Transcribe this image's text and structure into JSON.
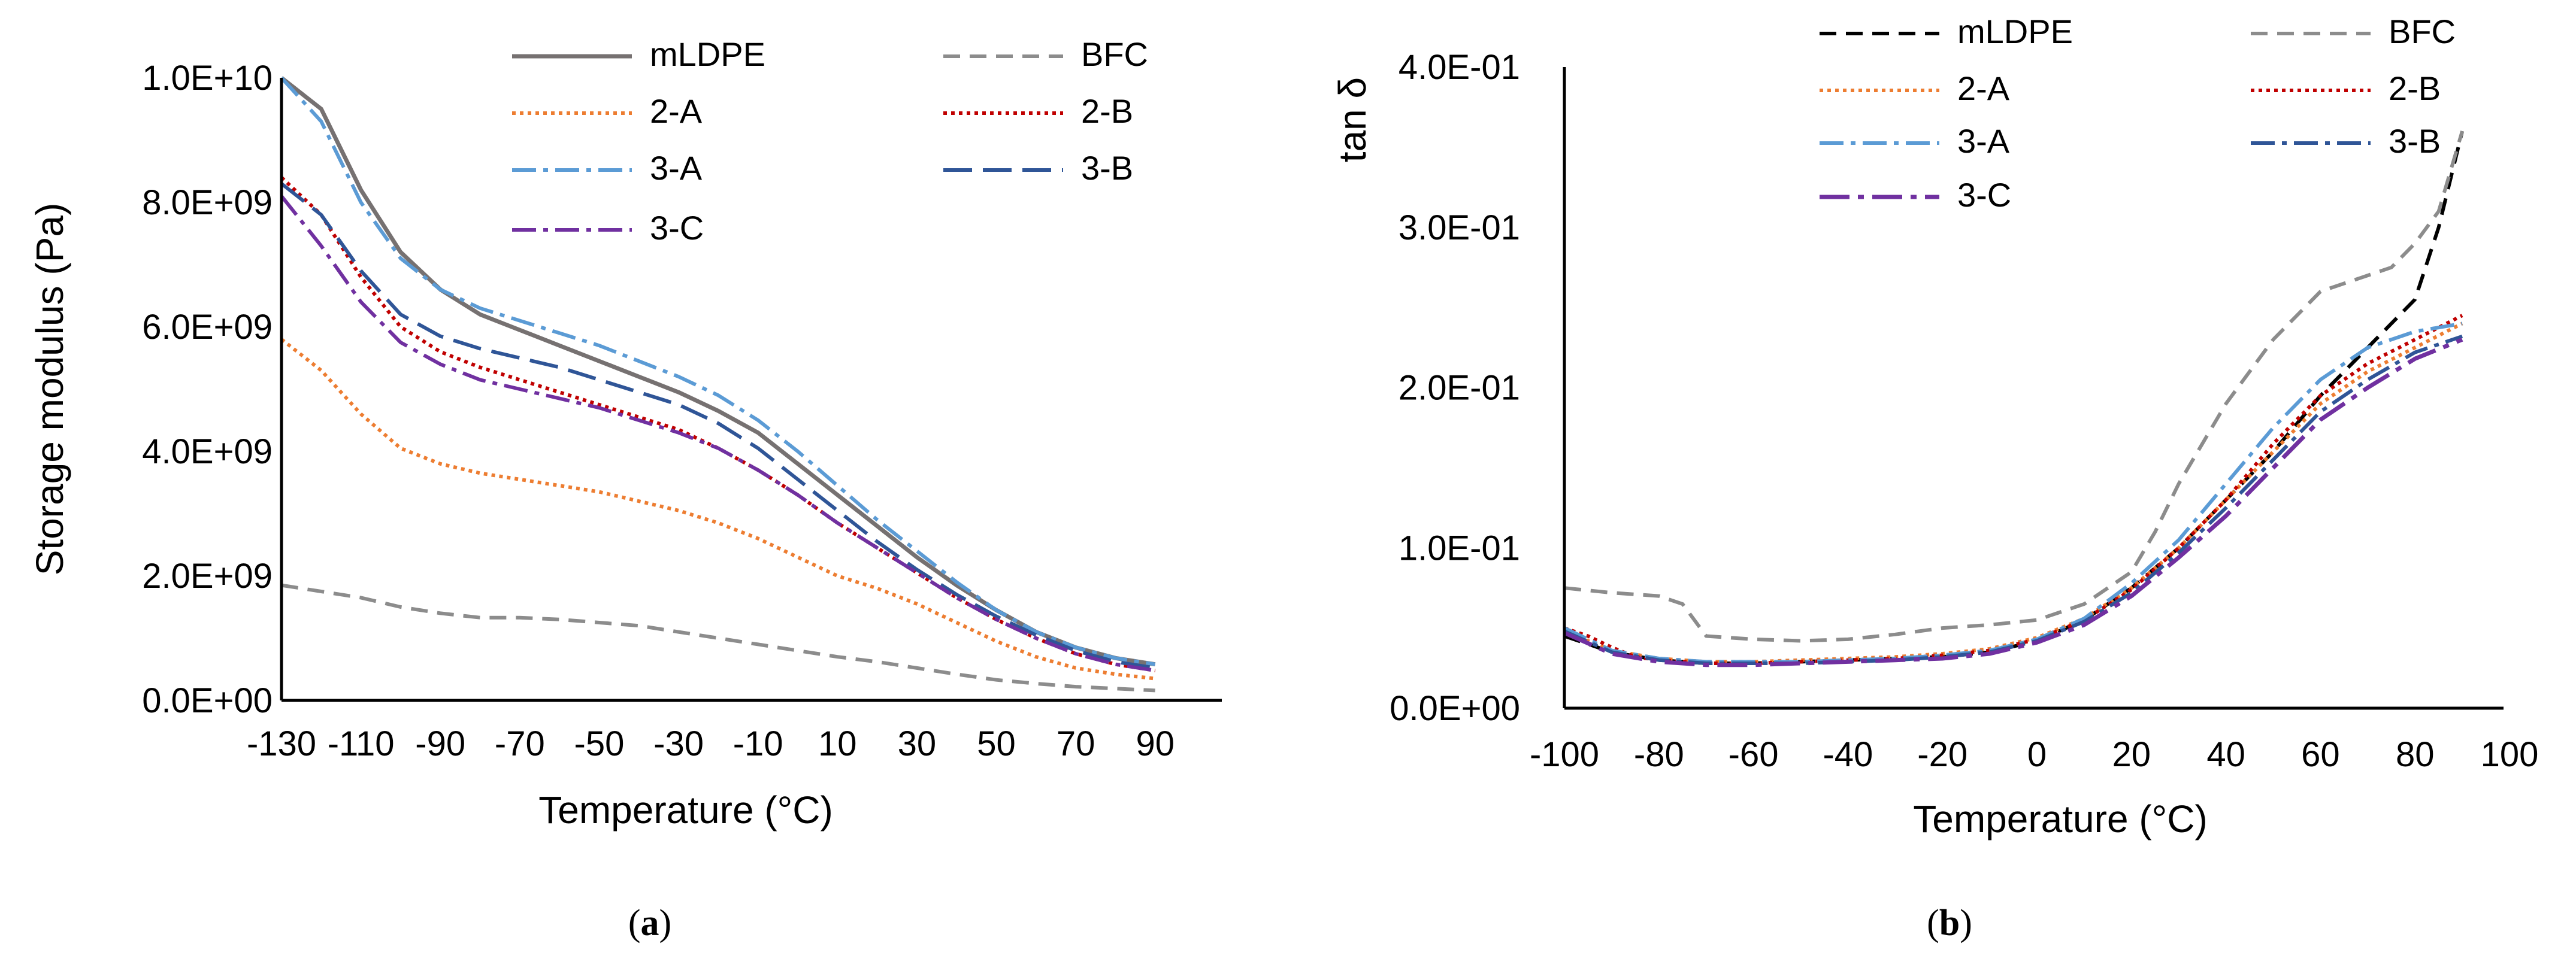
{
  "colors": {
    "mLDPE_a": "#767171",
    "mLDPE_b": "#000000",
    "BFC": "#8c8c8c",
    "2-A": "#ed7d31",
    "2-B": "#c00000",
    "3-A": "#5b9bd5",
    "3-B": "#2f5597",
    "3-C": "#7030a0"
  },
  "chart_data": [
    {
      "type": "line",
      "panel": "(a)",
      "caption_letter": "a",
      "xlabel": "Temperature (°C)",
      "ylabel": "Storage modulus (Pa)",
      "xlim": [
        -130,
        100
      ],
      "ylim": [
        0,
        10000000000
      ],
      "x_ticks": [
        -130,
        -110,
        -90,
        -70,
        -50,
        -30,
        -10,
        10,
        30,
        50,
        70,
        90
      ],
      "x_tick_labels": [
        "-130",
        "-110",
        "-90",
        "-70",
        "-50",
        "-30",
        "-10",
        "10",
        "30",
        "50",
        "70",
        "90"
      ],
      "y_ticks": [
        0,
        2000000000,
        4000000000,
        6000000000,
        8000000000,
        10000000000
      ],
      "y_tick_labels": [
        "0.0E+00",
        "2.0E+09",
        "4.0E+09",
        "6.0E+09",
        "8.0E+09",
        "1.0E+10"
      ],
      "legend": [
        "mLDPE",
        "BFC",
        "2-A",
        "2-B",
        "3-A",
        "3-B",
        "3-C"
      ],
      "series": [
        {
          "name": "mLDPE",
          "color_key": "mLDPE_a",
          "dash": "solid",
          "x": [
            -130,
            -120,
            -110,
            -100,
            -90,
            -80,
            -70,
            -60,
            -50,
            -40,
            -30,
            -20,
            -10,
            0,
            10,
            20,
            30,
            40,
            50,
            60,
            70,
            80,
            90
          ],
          "y": [
            10000000000.0,
            9500000000.0,
            8200000000.0,
            7200000000.0,
            6600000000.0,
            6200000000.0,
            5950000000.0,
            5700000000.0,
            5450000000.0,
            5200000000.0,
            4950000000.0,
            4650000000.0,
            4300000000.0,
            3800000000.0,
            3300000000.0,
            2800000000.0,
            2300000000.0,
            1850000000.0,
            1450000000.0,
            1100000000.0,
            850000000.0,
            680000000.0,
            580000000.0
          ]
        },
        {
          "name": "BFC",
          "color_key": "BFC",
          "dash": "dash",
          "x": [
            -130,
            -120,
            -110,
            -100,
            -90,
            -80,
            -70,
            -60,
            -50,
            -40,
            -30,
            -20,
            -10,
            0,
            10,
            20,
            30,
            40,
            50,
            60,
            70,
            80,
            90
          ],
          "y": [
            1850000000.0,
            1750000000.0,
            1650000000.0,
            1500000000.0,
            1400000000.0,
            1330000000.0,
            1330000000.0,
            1300000000.0,
            1250000000.0,
            1200000000.0,
            1100000000.0,
            1000000000.0,
            900000000.0,
            800000000.0,
            700000000.0,
            620000000.0,
            520000000.0,
            420000000.0,
            330000000.0,
            270000000.0,
            220000000.0,
            190000000.0,
            160000000.0
          ]
        },
        {
          "name": "2-A",
          "color_key": "2-A",
          "dash": "dot",
          "x": [
            -130,
            -120,
            -110,
            -100,
            -90,
            -80,
            -70,
            -60,
            -50,
            -40,
            -30,
            -20,
            -10,
            0,
            10,
            20,
            30,
            40,
            50,
            60,
            70,
            80,
            90
          ],
          "y": [
            5800000000.0,
            5300000000.0,
            4600000000.0,
            4050000000.0,
            3800000000.0,
            3650000000.0,
            3550000000.0,
            3450000000.0,
            3350000000.0,
            3200000000.0,
            3050000000.0,
            2850000000.0,
            2600000000.0,
            2300000000.0,
            2000000000.0,
            1800000000.0,
            1550000000.0,
            1250000000.0,
            950000000.0,
            700000000.0,
            520000000.0,
            420000000.0,
            350000000.0
          ]
        },
        {
          "name": "2-B",
          "color_key": "2-B",
          "dash": "dot",
          "x": [
            -130,
            -120,
            -110,
            -100,
            -90,
            -80,
            -70,
            -60,
            -50,
            -40,
            -30,
            -20,
            -10,
            0,
            10,
            20,
            30,
            40,
            50,
            60,
            70,
            80,
            90
          ],
          "y": [
            8400000000.0,
            7800000000.0,
            6800000000.0,
            6000000000.0,
            5600000000.0,
            5350000000.0,
            5150000000.0,
            4950000000.0,
            4750000000.0,
            4550000000.0,
            4350000000.0,
            4050000000.0,
            3700000000.0,
            3300000000.0,
            2850000000.0,
            2450000000.0,
            2050000000.0,
            1650000000.0,
            1300000000.0,
            1000000000.0,
            750000000.0,
            580000000.0,
            480000000.0
          ]
        },
        {
          "name": "3-A",
          "color_key": "3-A",
          "dash": "dashdot",
          "x": [
            -130,
            -120,
            -110,
            -100,
            -90,
            -80,
            -70,
            -60,
            -50,
            -40,
            -30,
            -20,
            -10,
            0,
            10,
            20,
            30,
            40,
            50,
            60,
            70,
            80,
            90
          ],
          "y": [
            10000000000.0,
            9300000000.0,
            8000000000.0,
            7100000000.0,
            6600000000.0,
            6300000000.0,
            6100000000.0,
            5900000000.0,
            5700000000.0,
            5450000000.0,
            5200000000.0,
            4900000000.0,
            4500000000.0,
            4000000000.0,
            3450000000.0,
            2900000000.0,
            2400000000.0,
            1900000000.0,
            1450000000.0,
            1100000000.0,
            850000000.0,
            680000000.0,
            580000000.0
          ]
        },
        {
          "name": "3-B",
          "color_key": "3-B",
          "dash": "longdash",
          "x": [
            -130,
            -120,
            -110,
            -100,
            -90,
            -80,
            -70,
            -60,
            -50,
            -40,
            -30,
            -20,
            -10,
            0,
            10,
            20,
            30,
            40,
            50,
            60,
            70,
            80,
            90
          ],
          "y": [
            8300000000.0,
            7800000000.0,
            6900000000.0,
            6200000000.0,
            5850000000.0,
            5650000000.0,
            5500000000.0,
            5350000000.0,
            5150000000.0,
            4950000000.0,
            4750000000.0,
            4450000000.0,
            4050000000.0,
            3550000000.0,
            3050000000.0,
            2550000000.0,
            2100000000.0,
            1700000000.0,
            1350000000.0,
            1050000000.0,
            800000000.0,
            620000000.0,
            520000000.0
          ]
        },
        {
          "name": "3-C",
          "color_key": "3-C",
          "dash": "dashdot",
          "x": [
            -130,
            -120,
            -110,
            -100,
            -90,
            -80,
            -70,
            -60,
            -50,
            -40,
            -30,
            -20,
            -10,
            0,
            10,
            20,
            30,
            40,
            50,
            60,
            70,
            80,
            90
          ],
          "y": [
            8100000000.0,
            7300000000.0,
            6400000000.0,
            5750000000.0,
            5400000000.0,
            5150000000.0,
            5000000000.0,
            4850000000.0,
            4700000000.0,
            4500000000.0,
            4300000000.0,
            4050000000.0,
            3700000000.0,
            3300000000.0,
            2850000000.0,
            2450000000.0,
            2050000000.0,
            1650000000.0,
            1300000000.0,
            1000000000.0,
            750000000.0,
            580000000.0,
            480000000.0
          ]
        }
      ]
    },
    {
      "type": "line",
      "panel": "(b)",
      "caption_letter": "b",
      "xlabel": "Temperature (°C)",
      "ylabel": "tan δ",
      "xlim": [
        -100,
        100
      ],
      "ylim": [
        0,
        0.4
      ],
      "x_ticks": [
        -100,
        -80,
        -60,
        -40,
        -20,
        0,
        20,
        40,
        60,
        80,
        100
      ],
      "x_tick_labels": [
        "-100",
        "-80",
        "-60",
        "-40",
        "-20",
        "0",
        "20",
        "40",
        "60",
        "80",
        "100"
      ],
      "y_ticks": [
        0,
        0.1,
        0.2,
        0.3,
        0.4
      ],
      "y_tick_labels": [
        "0.0E+00",
        "1.0E-01",
        "2.0E-01",
        "3.0E-01",
        "4.0E-01"
      ],
      "legend": [
        "mLDPE",
        "BFC",
        "2-A",
        "2-B",
        "3-A",
        "3-B",
        "3-C"
      ],
      "series": [
        {
          "name": "mLDPE",
          "color_key": "mLDPE_b",
          "dash": "dash",
          "x": [
            -100,
            -90,
            -80,
            -70,
            -60,
            -50,
            -40,
            -30,
            -20,
            -10,
            0,
            10,
            20,
            30,
            40,
            50,
            60,
            70,
            75,
            80,
            85,
            90
          ],
          "y": [
            0.045,
            0.035,
            0.03,
            0.028,
            0.028,
            0.029,
            0.03,
            0.031,
            0.032,
            0.035,
            0.042,
            0.055,
            0.075,
            0.1,
            0.13,
            0.16,
            0.195,
            0.225,
            0.24,
            0.255,
            0.3,
            0.36
          ]
        },
        {
          "name": "BFC",
          "color_key": "BFC",
          "dash": "dash",
          "x": [
            -100,
            -90,
            -80,
            -75,
            -70,
            -60,
            -50,
            -40,
            -30,
            -20,
            -10,
            0,
            10,
            20,
            25,
            30,
            40,
            50,
            60,
            70,
            75,
            80,
            85,
            90
          ],
          "y": [
            0.075,
            0.072,
            0.07,
            0.065,
            0.045,
            0.043,
            0.042,
            0.043,
            0.046,
            0.05,
            0.052,
            0.055,
            0.065,
            0.085,
            0.11,
            0.14,
            0.19,
            0.23,
            0.26,
            0.27,
            0.275,
            0.29,
            0.31,
            0.36
          ]
        },
        {
          "name": "2-A",
          "color_key": "2-A",
          "dash": "dot",
          "x": [
            -100,
            -90,
            -80,
            -70,
            -60,
            -50,
            -40,
            -30,
            -20,
            -10,
            0,
            10,
            20,
            30,
            40,
            50,
            60,
            70,
            80,
            90
          ],
          "y": [
            0.048,
            0.036,
            0.031,
            0.029,
            0.029,
            0.03,
            0.031,
            0.032,
            0.034,
            0.037,
            0.044,
            0.056,
            0.075,
            0.1,
            0.13,
            0.16,
            0.19,
            0.21,
            0.225,
            0.24
          ]
        },
        {
          "name": "2-B",
          "color_key": "2-B",
          "dash": "dot",
          "x": [
            -100,
            -95,
            -90,
            -85,
            -80,
            -70,
            -60,
            -50,
            -40,
            -30,
            -20,
            -10,
            0,
            10,
            20,
            30,
            40,
            50,
            60,
            70,
            80,
            90
          ],
          "y": [
            0.05,
            0.045,
            0.038,
            0.032,
            0.03,
            0.028,
            0.028,
            0.029,
            0.03,
            0.031,
            0.033,
            0.036,
            0.043,
            0.055,
            0.074,
            0.1,
            0.13,
            0.165,
            0.195,
            0.215,
            0.23,
            0.245
          ]
        },
        {
          "name": "3-A",
          "color_key": "3-A",
          "dash": "dashdot",
          "x": [
            -100,
            -90,
            -80,
            -70,
            -60,
            -50,
            -40,
            -30,
            -20,
            -10,
            0,
            10,
            20,
            30,
            40,
            50,
            60,
            70,
            80,
            90
          ],
          "y": [
            0.05,
            0.036,
            0.031,
            0.029,
            0.029,
            0.029,
            0.03,
            0.031,
            0.033,
            0.036,
            0.043,
            0.056,
            0.078,
            0.105,
            0.14,
            0.175,
            0.205,
            0.225,
            0.235,
            0.24
          ]
        },
        {
          "name": "3-B",
          "color_key": "3-B",
          "dash": "dashdot",
          "x": [
            -100,
            -90,
            -80,
            -70,
            -60,
            -50,
            -40,
            -30,
            -20,
            -10,
            0,
            10,
            20,
            30,
            40,
            50,
            60,
            70,
            80,
            90
          ],
          "y": [
            0.048,
            0.035,
            0.03,
            0.028,
            0.028,
            0.028,
            0.029,
            0.03,
            0.032,
            0.035,
            0.042,
            0.054,
            0.072,
            0.097,
            0.125,
            0.155,
            0.185,
            0.205,
            0.222,
            0.232
          ]
        },
        {
          "name": "3-C",
          "color_key": "3-C",
          "dash": "longdashdot",
          "x": [
            -100,
            -90,
            -80,
            -70,
            -60,
            -50,
            -40,
            -30,
            -20,
            -10,
            0,
            10,
            20,
            30,
            40,
            50,
            60,
            70,
            80,
            90
          ],
          "y": [
            0.047,
            0.034,
            0.029,
            0.027,
            0.027,
            0.028,
            0.029,
            0.03,
            0.031,
            0.034,
            0.041,
            0.052,
            0.07,
            0.094,
            0.12,
            0.15,
            0.18,
            0.2,
            0.218,
            0.23
          ]
        }
      ]
    }
  ]
}
